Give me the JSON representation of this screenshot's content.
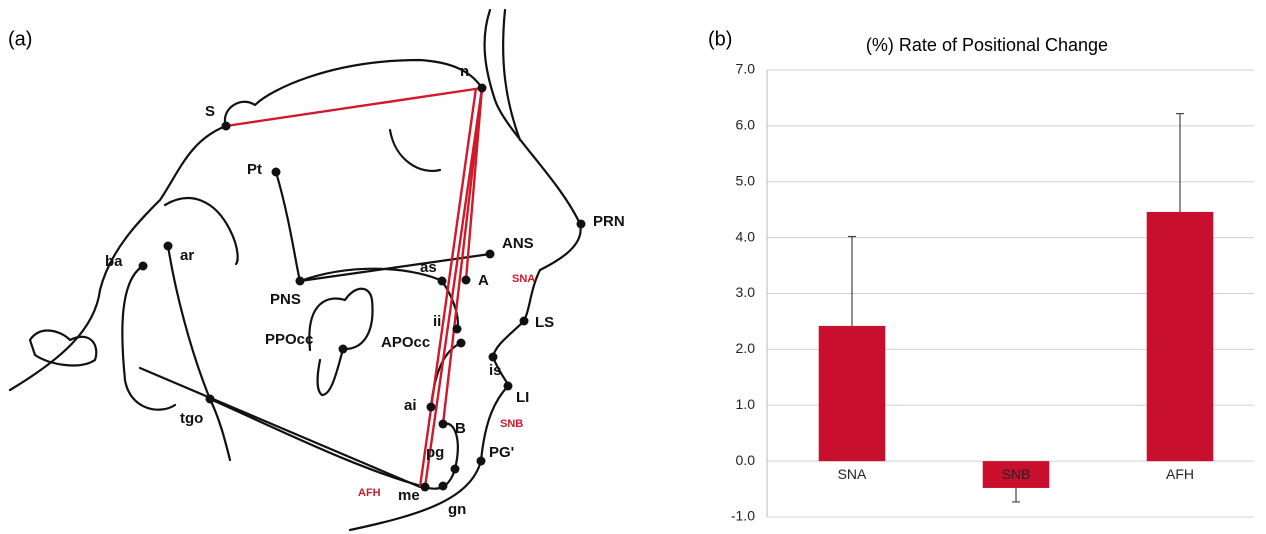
{
  "panel_a": {
    "label": "(a)",
    "landmarks": [
      "S",
      "n",
      "Pt",
      "ba",
      "ar",
      "PNS",
      "ANS",
      "PRN",
      "as",
      "A",
      "LS",
      "PPOcc",
      "APOcc",
      "ii",
      "is",
      "LI",
      "ai",
      "B",
      "tgo",
      "pg",
      "PG'",
      "me",
      "gn"
    ],
    "annotations": [
      "SNA",
      "SNB",
      "AFH"
    ]
  },
  "chart_data": {
    "type": "bar",
    "panel_label": "(b)",
    "title": "(%) Rate of Positional Change",
    "categories": [
      "SNA",
      "SNB",
      "AFH"
    ],
    "values": [
      2.42,
      -0.48,
      4.46
    ],
    "errors": [
      1.6,
      0.25,
      1.76
    ],
    "color": "#c8102e",
    "ylim": [
      -1,
      7
    ],
    "yticks": [
      {
        "value": -1,
        "label": "-1.0"
      },
      {
        "value": 0,
        "label": "0.0"
      },
      {
        "value": 1,
        "label": "1.0"
      },
      {
        "value": 2,
        "label": "2.0"
      },
      {
        "value": 3,
        "label": "3.0"
      },
      {
        "value": 4,
        "label": "4.0"
      },
      {
        "value": 5,
        "label": "5.0"
      },
      {
        "value": 6,
        "label": "6.0"
      },
      {
        "value": 7,
        "label": "7.0"
      }
    ],
    "grid": true
  }
}
